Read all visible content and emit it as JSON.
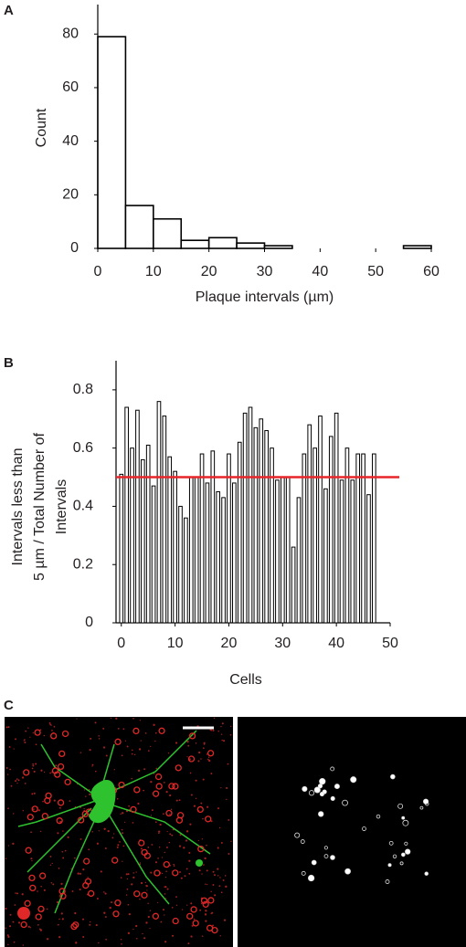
{
  "panel_labels": [
    "A",
    "B",
    "C"
  ],
  "chart_data": [
    {
      "type": "histogram",
      "y_label": "Count",
      "x_label": "Plaque intervals (µm)",
      "bins": [
        0,
        5,
        10,
        15,
        20,
        25,
        30,
        35,
        40,
        45,
        50,
        55,
        60
      ],
      "values": [
        79,
        16,
        11,
        3,
        4,
        2,
        1,
        0,
        0,
        0,
        0,
        1
      ],
      "color": "#ffffff",
      "edge_color": "#000000",
      "xlim": [
        0,
        60
      ],
      "xticks": [
        0,
        10,
        20,
        30,
        40,
        50,
        60
      ],
      "ylim": [
        0,
        91
      ],
      "yticks": [
        0,
        20,
        40,
        60,
        80
      ]
    },
    {
      "type": "bar",
      "y_label": [
        "Intervals less than",
        "5 µm / Total Number of",
        "Intervals"
      ],
      "x_label": "Cells",
      "x": [
        0,
        1,
        2,
        3,
        4,
        5,
        6,
        7,
        8,
        9,
        10,
        11,
        12,
        13,
        14,
        15,
        16,
        17,
        18,
        19,
        20,
        21,
        22,
        23,
        24,
        25,
        26,
        27,
        28,
        29,
        30,
        31,
        32,
        33,
        34,
        35,
        36,
        37,
        38,
        39,
        40,
        41,
        42,
        43,
        44,
        45,
        46,
        47
      ],
      "values": [
        0.51,
        0.74,
        0.6,
        0.73,
        0.56,
        0.61,
        0.47,
        0.76,
        0.71,
        0.57,
        0.52,
        0.4,
        0.36,
        0.5,
        0.5,
        0.58,
        0.48,
        0.59,
        0.45,
        0.43,
        0.58,
        0.48,
        0.62,
        0.72,
        0.74,
        0.67,
        0.7,
        0.66,
        0.6,
        0.49,
        0.5,
        0.5,
        0.26,
        0.43,
        0.58,
        0.68,
        0.6,
        0.71,
        0.46,
        0.64,
        0.72,
        0.49,
        0.6,
        0.49,
        0.58,
        0.58,
        0.44,
        0.58
      ],
      "color": "#ffffff",
      "edge_color": "#000000",
      "reference_line": 0.5,
      "reference_color": "#e8262a",
      "xlim": [
        -0.3,
        50
      ],
      "xticks": [
        0,
        10,
        20,
        30,
        40,
        50
      ],
      "ylim": [
        0,
        0.9
      ],
      "yticks": [
        0,
        0.2,
        0.4,
        0.6,
        0.8
      ]
    }
  ]
}
